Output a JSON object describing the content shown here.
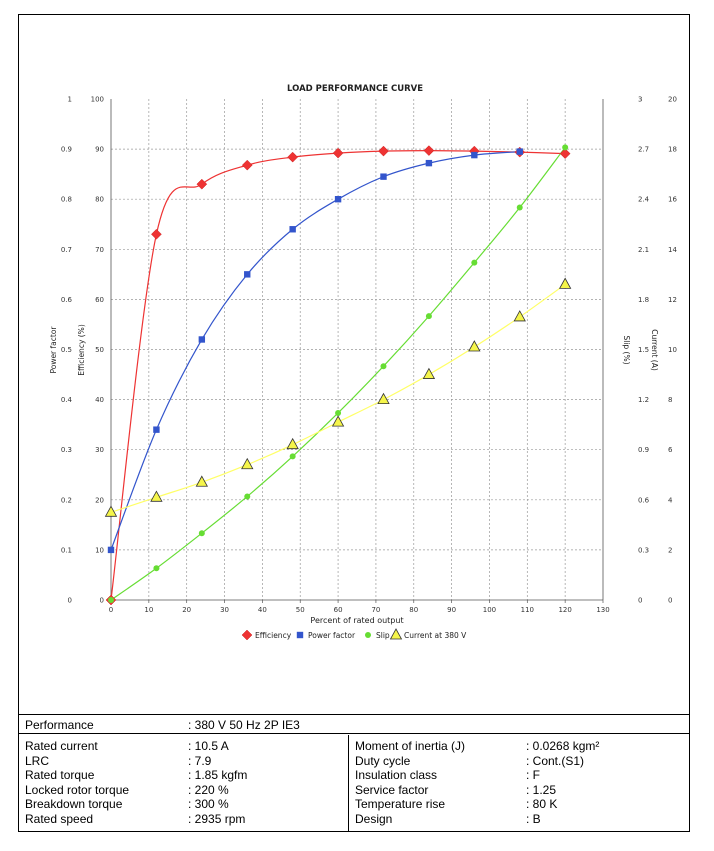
{
  "chart_data": {
    "type": "line",
    "title": "LOAD PERFORMANCE CURVE",
    "xlabel": "Percent of rated output",
    "xlim": [
      0,
      130
    ],
    "x_ticks": [
      "0",
      "10",
      "20",
      "30",
      "40",
      "50",
      "60",
      "70",
      "80",
      "90",
      "100",
      "110",
      "120",
      "130"
    ],
    "grid": true,
    "legend_position": "bottom",
    "axes": [
      {
        "id": "pf",
        "label": "Power factor",
        "side": "left",
        "ylim": [
          0,
          1
        ],
        "ticks": [
          "0",
          "0.1",
          "0.2",
          "0.3",
          "0.4",
          "0.5",
          "0.6",
          "0.7",
          "0.8",
          "0.9",
          "1"
        ]
      },
      {
        "id": "eff",
        "label": "Efficiency (%)",
        "side": "left",
        "ylim": [
          0,
          100
        ],
        "ticks": [
          "0",
          "10",
          "20",
          "30",
          "40",
          "50",
          "60",
          "70",
          "80",
          "90",
          "100"
        ]
      },
      {
        "id": "slip",
        "label": "Slip (%)",
        "side": "right",
        "ylim": [
          0,
          3
        ],
        "ticks": [
          "0",
          "0.3",
          "0.6",
          "0.9",
          "1.2",
          "1.5",
          "1.8",
          "2.1",
          "2.4",
          "2.7",
          "3"
        ]
      },
      {
        "id": "cur",
        "label": "Current (A)",
        "side": "right",
        "ylim": [
          0,
          20
        ],
        "ticks": [
          "0",
          "2",
          "4",
          "6",
          "8",
          "10",
          "12",
          "14",
          "16",
          "18",
          "20"
        ]
      }
    ],
    "series": [
      {
        "name": "Efficiency",
        "axis": "eff",
        "marker": "diamond",
        "color": "#ee3333",
        "x": [
          0,
          12,
          24,
          36,
          48,
          60,
          72,
          84,
          96,
          108,
          120
        ],
        "values": [
          0,
          73,
          83,
          86.8,
          88.4,
          89.2,
          89.6,
          89.7,
          89.6,
          89.4,
          89.1
        ]
      },
      {
        "name": "Power factor",
        "axis": "pf",
        "marker": "square",
        "color": "#3355cc",
        "x": [
          0,
          12,
          24,
          36,
          48,
          60,
          72,
          84,
          96,
          108
        ],
        "values": [
          0.1,
          0.34,
          0.52,
          0.65,
          0.74,
          0.8,
          0.845,
          0.872,
          0.888,
          0.895
        ]
      },
      {
        "name": "Slip",
        "axis": "slip",
        "marker": "circle",
        "color": "#66dd33",
        "x": [
          0,
          12,
          24,
          36,
          48,
          60,
          72,
          84,
          96,
          108,
          120
        ],
        "values": [
          0,
          0.19,
          0.4,
          0.62,
          0.86,
          1.12,
          1.4,
          1.7,
          2.02,
          2.35,
          2.71
        ]
      },
      {
        "name": "Current at 380 V",
        "axis": "cur",
        "marker": "triangle",
        "color": "#f5f54a",
        "x": [
          0,
          12,
          24,
          36,
          48,
          60,
          72,
          84,
          96,
          108,
          120
        ],
        "values": [
          3.5,
          4.1,
          4.7,
          5.4,
          6.2,
          7.1,
          8.0,
          9.0,
          10.1,
          11.3,
          12.6
        ]
      }
    ]
  },
  "specs": {
    "performance_label": "Performance",
    "performance_value": ": 380 V 50 Hz 2P IE3",
    "left": [
      {
        "label": "Rated current",
        "value": ": 10.5 A"
      },
      {
        "label": "LRC",
        "value": ": 7.9"
      },
      {
        "label": "Rated torque",
        "value": ": 1.85 kgfm"
      },
      {
        "label": "Locked rotor torque",
        "value": ": 220 %"
      },
      {
        "label": "Breakdown torque",
        "value": ": 300 %"
      },
      {
        "label": "Rated speed",
        "value": ": 2935 rpm"
      }
    ],
    "right": [
      {
        "label": "Moment of inertia (J)",
        "value": ": 0.0268 kgm²"
      },
      {
        "label": "Duty cycle",
        "value": ": Cont.(S1)"
      },
      {
        "label": "Insulation class",
        "value": ": F"
      },
      {
        "label": "Service factor",
        "value": ": 1.25"
      },
      {
        "label": "Temperature rise",
        "value": ": 80 K"
      },
      {
        "label": "Design",
        "value": ": B"
      }
    ]
  }
}
